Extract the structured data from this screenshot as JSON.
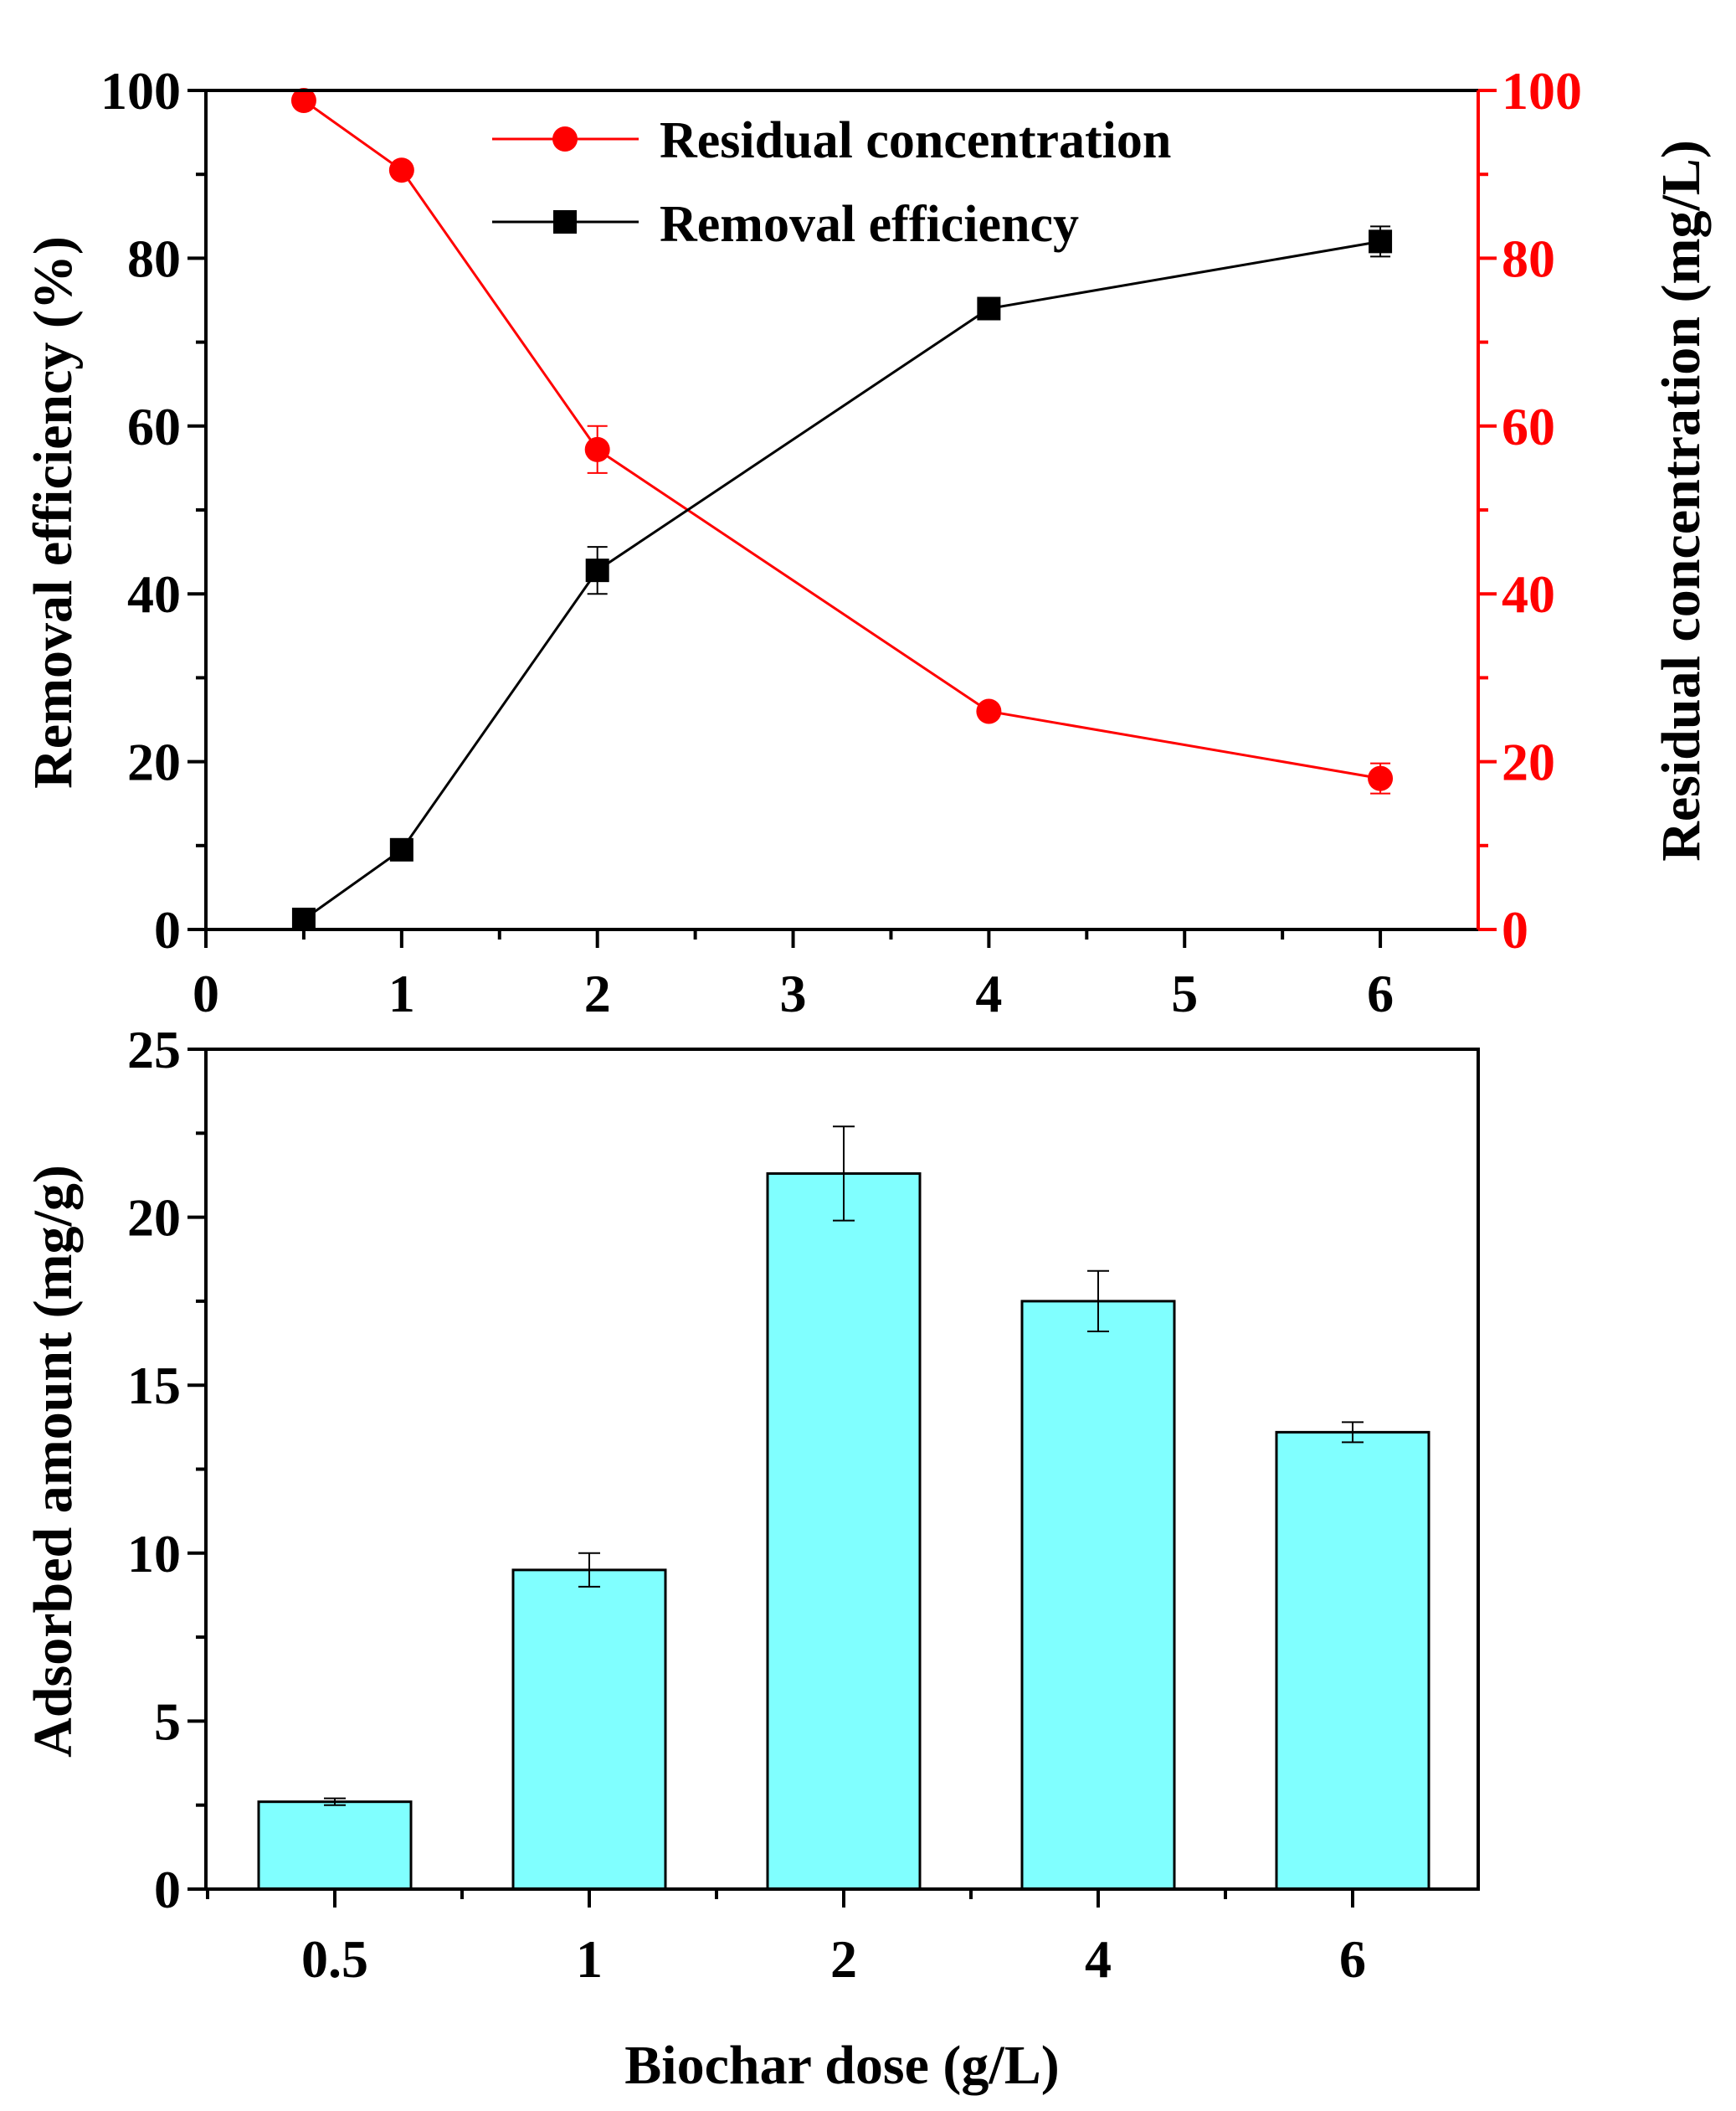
{
  "chart_data": [
    {
      "type": "line",
      "panel": "top",
      "x": [
        0.5,
        1,
        2,
        4,
        6
      ],
      "xlim": [
        0,
        6.5
      ],
      "x_ticks": [
        "0",
        "1",
        "2",
        "3",
        "4",
        "5",
        "6"
      ],
      "ylabel": "Removal efficiency (%)",
      "ylim": [
        0,
        100
      ],
      "y_ticks": [
        "0",
        "20",
        "40",
        "60",
        "80",
        "100"
      ],
      "y2label": "Residual concentration (mg/L)",
      "y2lim": [
        0,
        100
      ],
      "y2_ticks": [
        "0",
        "20",
        "40",
        "60",
        "80",
        "100"
      ],
      "series": [
        {
          "name": "Residual concentration",
          "axis": "right",
          "marker": "circle",
          "color": "#ff0000",
          "values": [
            98.8,
            90.5,
            57.2,
            26.0,
            18.0
          ],
          "errors": [
            0.5,
            0.6,
            2.8,
            0.8,
            1.8
          ]
        },
        {
          "name": "Removal efficiency",
          "axis": "left",
          "marker": "square",
          "color": "#000000",
          "values": [
            1.2,
            9.5,
            42.8,
            74.0,
            82.0
          ],
          "errors": [
            0.5,
            0.6,
            2.8,
            0.8,
            1.8
          ]
        }
      ],
      "legend_position": "top-right"
    },
    {
      "type": "bar",
      "panel": "bottom",
      "categories": [
        "0.5",
        "1",
        "2",
        "4",
        "6"
      ],
      "values": [
        2.6,
        9.5,
        21.3,
        17.5,
        13.6
      ],
      "errors": [
        0.1,
        0.5,
        1.4,
        0.9,
        0.3
      ],
      "bar_color": "#80ffff",
      "xlabel": "Biochar dose (g/L)",
      "ylabel": "Adsorbed amount (mg/g)",
      "ylim": [
        0,
        25
      ],
      "y_ticks": [
        "0",
        "5",
        "10",
        "15",
        "20",
        "25"
      ]
    }
  ]
}
